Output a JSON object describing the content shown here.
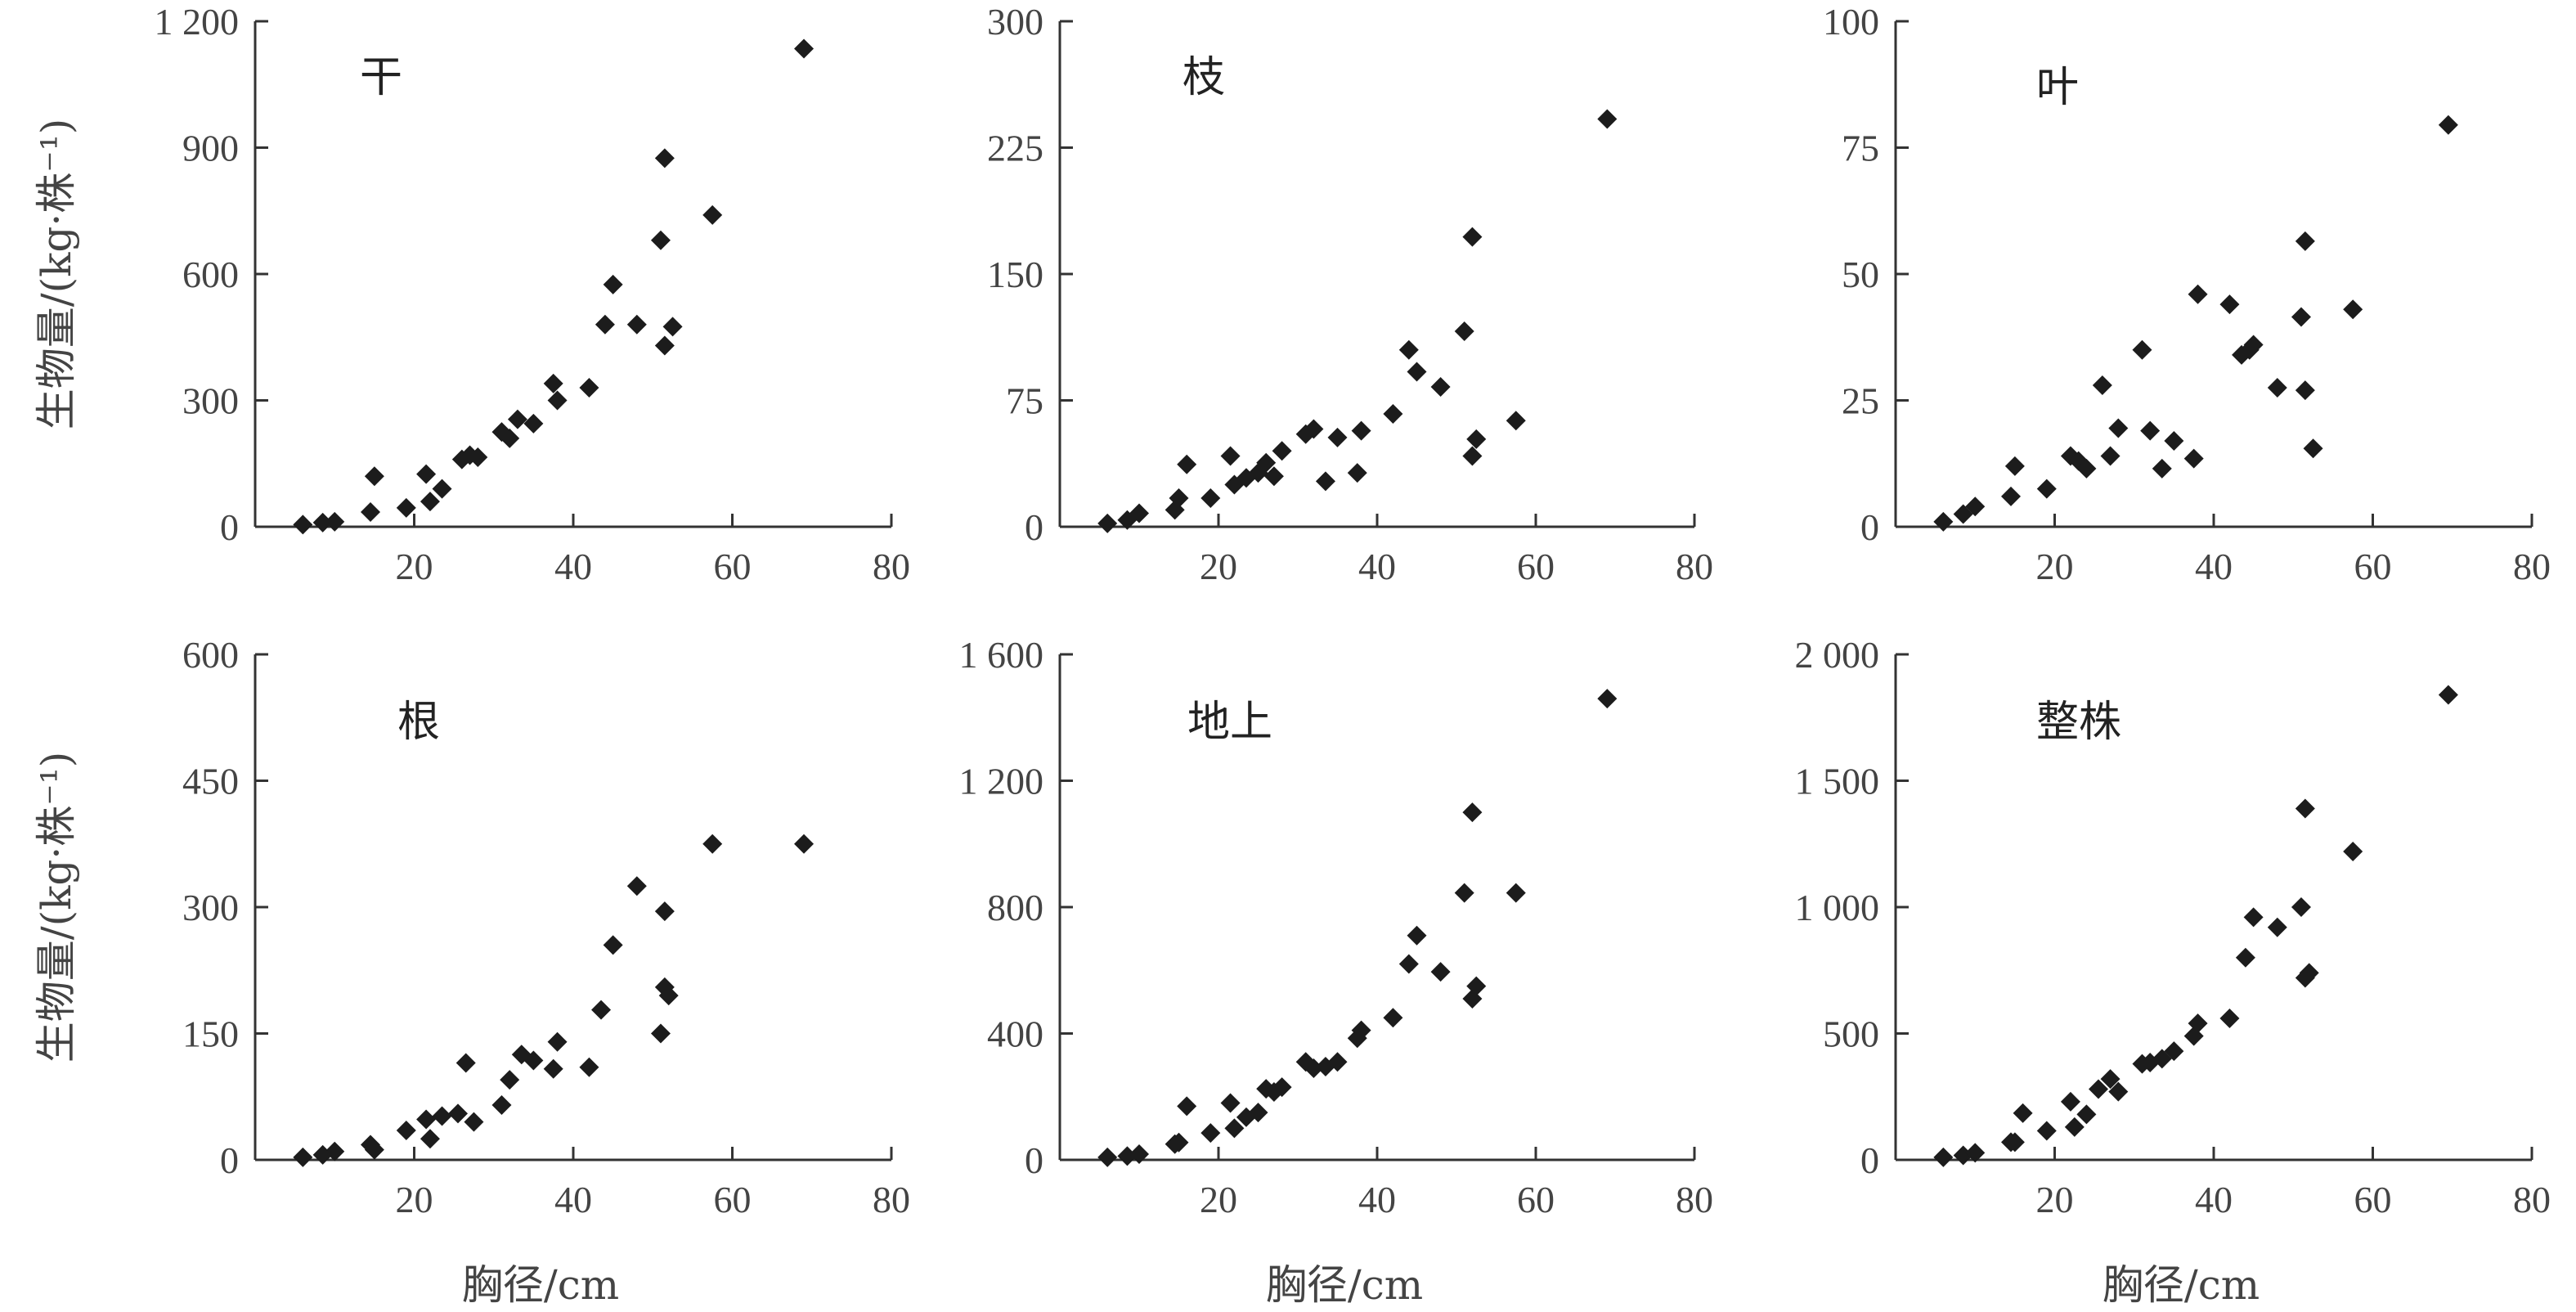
{
  "chart_data": [
    {
      "type": "scatter",
      "label": "干",
      "xlabel": "",
      "ylabel": "生物量/(kg·株⁻¹)",
      "xlim": [
        0,
        80
      ],
      "ylim": [
        0,
        1200
      ],
      "xticks": [
        20,
        40,
        60,
        80
      ],
      "xtick_labels": [
        "20",
        "40",
        "60",
        "80"
      ],
      "yticks": [
        0,
        300,
        600,
        900,
        1200
      ],
      "ytick_labels": [
        "0",
        "300",
        "600",
        "900",
        "1 200"
      ],
      "points": [
        [
          6,
          5
        ],
        [
          8.5,
          10
        ],
        [
          10,
          12
        ],
        [
          14.5,
          35
        ],
        [
          15,
          120
        ],
        [
          19,
          45
        ],
        [
          21.5,
          125
        ],
        [
          22,
          60
        ],
        [
          23.5,
          90
        ],
        [
          26,
          160
        ],
        [
          27,
          170
        ],
        [
          28,
          165
        ],
        [
          31,
          225
        ],
        [
          32,
          210
        ],
        [
          33,
          255
        ],
        [
          35,
          245
        ],
        [
          37.5,
          340
        ],
        [
          38,
          300
        ],
        [
          42,
          330
        ],
        [
          44,
          480
        ],
        [
          45,
          575
        ],
        [
          48,
          480
        ],
        [
          51,
          680
        ],
        [
          51.5,
          875
        ],
        [
          51.5,
          430
        ],
        [
          52.5,
          475
        ],
        [
          57.5,
          740
        ],
        [
          69,
          1135
        ]
      ]
    },
    {
      "type": "scatter",
      "label": "枝",
      "xlabel": "",
      "ylabel": "",
      "xlim": [
        0,
        80
      ],
      "ylim": [
        0,
        300
      ],
      "xticks": [
        20,
        40,
        60,
        80
      ],
      "xtick_labels": [
        "20",
        "40",
        "60",
        "80"
      ],
      "yticks": [
        0,
        75,
        150,
        225,
        300
      ],
      "ytick_labels": [
        "0",
        "75",
        "150",
        "225",
        "300"
      ],
      "points": [
        [
          6,
          2
        ],
        [
          8.5,
          4
        ],
        [
          10,
          8
        ],
        [
          14.5,
          10
        ],
        [
          15,
          17
        ],
        [
          16,
          37
        ],
        [
          19,
          17
        ],
        [
          21.5,
          42
        ],
        [
          22,
          25
        ],
        [
          23.5,
          29
        ],
        [
          25,
          32
        ],
        [
          26,
          38
        ],
        [
          27,
          30
        ],
        [
          28,
          45
        ],
        [
          31,
          55
        ],
        [
          32,
          58
        ],
        [
          33.5,
          27
        ],
        [
          35,
          53
        ],
        [
          37.5,
          32
        ],
        [
          38,
          57
        ],
        [
          42,
          67
        ],
        [
          44,
          105
        ],
        [
          45,
          92
        ],
        [
          48,
          83
        ],
        [
          51,
          116
        ],
        [
          52,
          172
        ],
        [
          52,
          42
        ],
        [
          52.5,
          52
        ],
        [
          57.5,
          63
        ],
        [
          69,
          242
        ]
      ]
    },
    {
      "type": "scatter",
      "label": "叶",
      "xlabel": "",
      "ylabel": "",
      "xlim": [
        0,
        80
      ],
      "ylim": [
        0,
        100
      ],
      "xticks": [
        20,
        40,
        60,
        80
      ],
      "xtick_labels": [
        "20",
        "40",
        "60",
        "80"
      ],
      "yticks": [
        0,
        25,
        50,
        75,
        100
      ],
      "ytick_labels": [
        "0",
        "25",
        "50",
        "75",
        "100"
      ],
      "points": [
        [
          6,
          1
        ],
        [
          8.5,
          2.5
        ],
        [
          10,
          4
        ],
        [
          14.5,
          6
        ],
        [
          15,
          12
        ],
        [
          19,
          7.5
        ],
        [
          22,
          14
        ],
        [
          23,
          13
        ],
        [
          24,
          11.5
        ],
        [
          26,
          28
        ],
        [
          27,
          14
        ],
        [
          28,
          19.5
        ],
        [
          31,
          35
        ],
        [
          32,
          19
        ],
        [
          33.5,
          11.5
        ],
        [
          35,
          17
        ],
        [
          37.5,
          13.5
        ],
        [
          38,
          46
        ],
        [
          42,
          44
        ],
        [
          43.5,
          34
        ],
        [
          44.5,
          35
        ],
        [
          45,
          36
        ],
        [
          48,
          27.5
        ],
        [
          51,
          41.5
        ],
        [
          51.5,
          56.5
        ],
        [
          51.5,
          27
        ],
        [
          52.5,
          15.5
        ],
        [
          57.5,
          43
        ],
        [
          69.5,
          79.5
        ]
      ]
    },
    {
      "type": "scatter",
      "label": "根",
      "xlabel": "胸径/cm",
      "ylabel": "生物量/(kg·株⁻¹)",
      "xlim": [
        0,
        80
      ],
      "ylim": [
        0,
        600
      ],
      "xticks": [
        20,
        40,
        60,
        80
      ],
      "xtick_labels": [
        "20",
        "40",
        "60",
        "80"
      ],
      "yticks": [
        0,
        150,
        300,
        450,
        600
      ],
      "ytick_labels": [
        "0",
        "150",
        "300",
        "450",
        "600"
      ],
      "points": [
        [
          6,
          3
        ],
        [
          8.5,
          6
        ],
        [
          10,
          10
        ],
        [
          14.5,
          18
        ],
        [
          15,
          12
        ],
        [
          19,
          35
        ],
        [
          21.5,
          48
        ],
        [
          22,
          25
        ],
        [
          23.5,
          52
        ],
        [
          25.5,
          55
        ],
        [
          26.5,
          115
        ],
        [
          27.5,
          45
        ],
        [
          31,
          65
        ],
        [
          32,
          95
        ],
        [
          33.5,
          125
        ],
        [
          35,
          118
        ],
        [
          37.5,
          108
        ],
        [
          38,
          140
        ],
        [
          42,
          110
        ],
        [
          43.5,
          178
        ],
        [
          45,
          255
        ],
        [
          48,
          325
        ],
        [
          51,
          150
        ],
        [
          51.5,
          205
        ],
        [
          51.5,
          295
        ],
        [
          52,
          195
        ],
        [
          57.5,
          375
        ],
        [
          69,
          375
        ]
      ]
    },
    {
      "type": "scatter",
      "label": "地上",
      "xlabel": "胸径/cm",
      "ylabel": "",
      "xlim": [
        0,
        80
      ],
      "ylim": [
        0,
        1600
      ],
      "xticks": [
        20,
        40,
        60,
        80
      ],
      "xtick_labels": [
        "20",
        "40",
        "60",
        "80"
      ],
      "yticks": [
        0,
        400,
        800,
        1200,
        1600
      ],
      "ytick_labels": [
        "0",
        "400",
        "800",
        "1 200",
        "1 600"
      ],
      "points": [
        [
          6,
          8
        ],
        [
          8.5,
          12
        ],
        [
          10,
          18
        ],
        [
          14.5,
          50
        ],
        [
          15,
          55
        ],
        [
          16,
          170
        ],
        [
          19,
          85
        ],
        [
          21.5,
          180
        ],
        [
          22,
          100
        ],
        [
          23.5,
          135
        ],
        [
          25,
          150
        ],
        [
          26,
          225
        ],
        [
          27,
          215
        ],
        [
          28,
          230
        ],
        [
          31,
          310
        ],
        [
          32,
          290
        ],
        [
          33.5,
          295
        ],
        [
          35,
          310
        ],
        [
          37.5,
          385
        ],
        [
          38,
          410
        ],
        [
          42,
          450
        ],
        [
          44,
          620
        ],
        [
          45,
          710
        ],
        [
          48,
          595
        ],
        [
          51,
          845
        ],
        [
          52,
          1100
        ],
        [
          52,
          510
        ],
        [
          52.5,
          550
        ],
        [
          57.5,
          845
        ],
        [
          69,
          1460
        ]
      ]
    },
    {
      "type": "scatter",
      "label": "整株",
      "xlabel": "胸径/cm",
      "ylabel": "",
      "xlim": [
        0,
        80
      ],
      "ylim": [
        0,
        2000
      ],
      "xticks": [
        20,
        40,
        60,
        80
      ],
      "xtick_labels": [
        "20",
        "40",
        "60",
        "80"
      ],
      "yticks": [
        0,
        500,
        1000,
        1500,
        2000
      ],
      "ytick_labels": [
        "0",
        "500",
        "1 000",
        "1 500",
        "2 000"
      ],
      "points": [
        [
          6,
          10
        ],
        [
          8.5,
          18
        ],
        [
          10,
          28
        ],
        [
          14.5,
          70
        ],
        [
          15,
          70
        ],
        [
          16,
          185
        ],
        [
          19,
          115
        ],
        [
          22,
          230
        ],
        [
          22.5,
          130
        ],
        [
          24,
          180
        ],
        [
          25.5,
          280
        ],
        [
          27,
          320
        ],
        [
          28,
          270
        ],
        [
          31,
          380
        ],
        [
          32,
          385
        ],
        [
          33.5,
          400
        ],
        [
          35,
          430
        ],
        [
          37.5,
          490
        ],
        [
          38,
          540
        ],
        [
          42,
          560
        ],
        [
          44,
          800
        ],
        [
          45,
          960
        ],
        [
          48,
          920
        ],
        [
          51,
          1000
        ],
        [
          51.5,
          1390
        ],
        [
          51.5,
          720
        ],
        [
          52,
          740
        ],
        [
          57.5,
          1220
        ],
        [
          69.5,
          1840
        ]
      ]
    }
  ]
}
